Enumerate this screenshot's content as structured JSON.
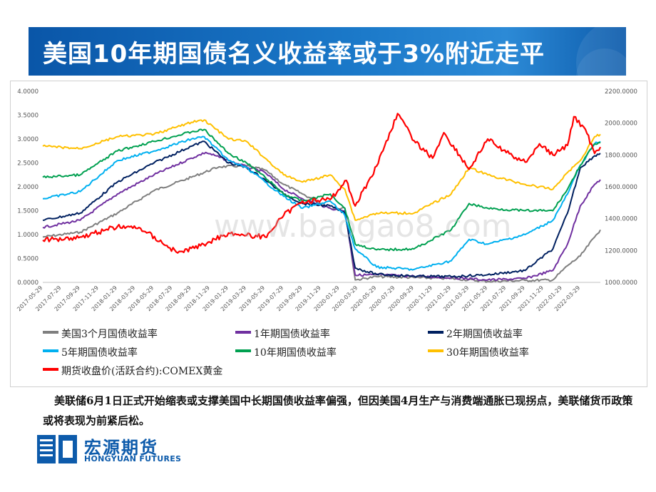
{
  "title": "美国10年期国债名义收益率或于3%附近走平",
  "note": "美联储6月1日正式开始缩表或支撑美国中长期国债收益率偏强，但因美国4月生产与消费端通胀已现拐点，美联储货币政策或将表现为前紧后松。",
  "logo": {
    "cn": "宏源期货",
    "en": "HONGYUAN FUTURES",
    "color": "#0d5bab"
  },
  "watermark": "www.baogao8.com",
  "chart_data": {
    "type": "line",
    "x_ticks": [
      "2017-05-29",
      "2017-07-29",
      "2017-09-29",
      "2017-11-29",
      "2018-01-29",
      "2018-03-29",
      "2018-05-29",
      "2018-07-29",
      "2018-09-29",
      "2018-11-29",
      "2019-01-29",
      "2019-03-29",
      "2019-05-29",
      "2019-07-29",
      "2019-09-29",
      "2019-11-29",
      "2020-01-29",
      "2020-03-29",
      "2020-05-29",
      "2020-07-29",
      "2020-09-29",
      "2020-11-29",
      "2021-01-29",
      "2021-03-29",
      "2021-05-29",
      "2021-07-29",
      "2021-09-29",
      "2021-11-29",
      "2022-01-29",
      "2022-03-29"
    ],
    "x_range": [
      "2017-05-29",
      "2022-06-03"
    ],
    "y_left": {
      "range": [
        0,
        4
      ],
      "ticks": [
        "0.0000",
        "0.5000",
        "1.0000",
        "1.5000",
        "2.0000",
        "2.5000",
        "3.0000",
        "3.5000",
        "4.0000"
      ]
    },
    "y_right": {
      "range": [
        1000,
        2200
      ],
      "ticks": [
        "1000.0000",
        "1200.0000",
        "1400.0000",
        "1600.0000",
        "1800.0000",
        "2000.0000",
        "2200.0000"
      ]
    },
    "grid": false,
    "legend_position": "bottom",
    "series": [
      {
        "name": "美国3个月国债收益率",
        "color": "#7f7f7f",
        "axis": "left",
        "x": [
          "2017-05-29",
          "2017-09-29",
          "2018-01-29",
          "2018-05-29",
          "2018-09-29",
          "2018-12-29",
          "2019-03-29",
          "2019-05-29",
          "2019-07-29",
          "2019-09-29",
          "2019-12-29",
          "2020-02-15",
          "2020-03-20",
          "2020-05-29",
          "2020-09-29",
          "2021-01-29",
          "2021-05-29",
          "2021-09-29",
          "2021-12-29",
          "2022-02-15",
          "2022-03-29",
          "2022-05-15",
          "2022-06-03"
        ],
        "values": [
          0.95,
          1.05,
          1.45,
          1.92,
          2.2,
          2.42,
          2.44,
          2.35,
          2.05,
          1.85,
          1.55,
          1.55,
          0.05,
          0.12,
          0.1,
          0.08,
          0.02,
          0.04,
          0.05,
          0.35,
          0.55,
          0.95,
          1.1
        ]
      },
      {
        "name": "1年期国债收益率",
        "color": "#7030a0",
        "axis": "left",
        "x": [
          "2017-05-29",
          "2017-09-29",
          "2018-01-29",
          "2018-05-29",
          "2018-09-29",
          "2018-11-15",
          "2019-01-29",
          "2019-03-29",
          "2019-05-29",
          "2019-07-29",
          "2019-09-29",
          "2019-12-29",
          "2020-02-15",
          "2020-03-20",
          "2020-05-29",
          "2020-09-29",
          "2021-01-29",
          "2021-05-29",
          "2021-09-29",
          "2021-12-29",
          "2022-02-15",
          "2022-03-29",
          "2022-05-15",
          "2022-06-03"
        ],
        "values": [
          1.15,
          1.3,
          1.85,
          2.25,
          2.6,
          2.72,
          2.55,
          2.42,
          2.3,
          1.95,
          1.75,
          1.55,
          1.5,
          0.15,
          0.16,
          0.13,
          0.1,
          0.05,
          0.08,
          0.25,
          0.8,
          1.6,
          2.05,
          2.15
        ]
      },
      {
        "name": "2年期国债收益率",
        "color": "#002060",
        "axis": "left",
        "x": [
          "2017-05-29",
          "2017-09-29",
          "2018-01-29",
          "2018-05-29",
          "2018-09-29",
          "2018-11-10",
          "2019-01-29",
          "2019-03-29",
          "2019-05-29",
          "2019-07-29",
          "2019-09-29",
          "2019-12-29",
          "2020-02-15",
          "2020-03-20",
          "2020-05-29",
          "2020-09-29",
          "2021-01-29",
          "2021-05-29",
          "2021-09-29",
          "2021-12-29",
          "2022-02-15",
          "2022-03-29",
          "2022-05-15",
          "2022-06-03"
        ],
        "values": [
          1.3,
          1.45,
          2.1,
          2.5,
          2.85,
          2.95,
          2.5,
          2.4,
          2.15,
          1.85,
          1.65,
          1.6,
          1.45,
          0.3,
          0.17,
          0.13,
          0.12,
          0.16,
          0.25,
          0.7,
          1.45,
          2.4,
          2.65,
          2.7
        ]
      },
      {
        "name": "5年期国债收益率",
        "color": "#00b0f0",
        "axis": "left",
        "x": [
          "2017-05-29",
          "2017-09-29",
          "2018-01-29",
          "2018-05-29",
          "2018-09-29",
          "2018-11-10",
          "2019-01-29",
          "2019-03-29",
          "2019-05-29",
          "2019-07-29",
          "2019-09-29",
          "2019-12-29",
          "2020-02-15",
          "2020-03-20",
          "2020-05-29",
          "2020-09-29",
          "2021-01-29",
          "2021-03-29",
          "2021-05-29",
          "2021-09-29",
          "2021-12-29",
          "2022-02-15",
          "2022-03-29",
          "2022-05-15",
          "2022-06-03"
        ],
        "values": [
          1.75,
          1.9,
          2.55,
          2.75,
          3.0,
          3.05,
          2.55,
          2.4,
          2.1,
          1.8,
          1.55,
          1.7,
          1.4,
          0.7,
          0.32,
          0.27,
          0.45,
          0.9,
          0.8,
          1.0,
          1.3,
          1.85,
          2.45,
          2.9,
          2.95
        ]
      },
      {
        "name": "10年期国债收益率",
        "color": "#00a050",
        "axis": "left",
        "x": [
          "2017-05-29",
          "2017-09-29",
          "2018-01-29",
          "2018-05-29",
          "2018-09-29",
          "2018-11-10",
          "2019-01-29",
          "2019-03-29",
          "2019-05-29",
          "2019-07-29",
          "2019-09-29",
          "2019-12-29",
          "2020-02-15",
          "2020-03-20",
          "2020-05-29",
          "2020-09-29",
          "2021-01-29",
          "2021-03-29",
          "2021-05-29",
          "2021-09-29",
          "2021-12-29",
          "2022-02-15",
          "2022-03-29",
          "2022-05-15",
          "2022-06-03"
        ],
        "values": [
          2.2,
          2.25,
          2.75,
          2.95,
          3.15,
          3.2,
          2.7,
          2.5,
          2.2,
          1.85,
          1.7,
          1.85,
          1.55,
          0.8,
          0.68,
          0.7,
          1.1,
          1.65,
          1.55,
          1.5,
          1.5,
          1.95,
          2.45,
          2.9,
          2.92
        ]
      },
      {
        "name": "30年期国债收益率",
        "color": "#ffc000",
        "axis": "left",
        "x": [
          "2017-05-29",
          "2017-09-29",
          "2018-01-29",
          "2018-05-29",
          "2018-09-29",
          "2018-11-10",
          "2019-01-29",
          "2019-03-29",
          "2019-05-29",
          "2019-07-29",
          "2019-09-29",
          "2019-12-29",
          "2020-02-15",
          "2020-03-20",
          "2020-05-29",
          "2020-09-29",
          "2021-01-29",
          "2021-03-29",
          "2021-05-29",
          "2021-09-29",
          "2021-12-29",
          "2022-02-15",
          "2022-03-29",
          "2022-05-15",
          "2022-06-03"
        ],
        "values": [
          2.85,
          2.8,
          3.05,
          3.1,
          3.35,
          3.4,
          3.0,
          2.95,
          2.6,
          2.25,
          2.1,
          2.25,
          1.95,
          1.3,
          1.45,
          1.45,
          1.85,
          2.4,
          2.25,
          2.05,
          1.95,
          2.3,
          2.55,
          3.05,
          3.1
        ]
      },
      {
        "name": "期货收盘价(活跃合约):COMEX黄金",
        "color": "#ff0000",
        "axis": "right",
        "x": [
          "2017-05-29",
          "2017-09-29",
          "2018-01-29",
          "2018-04-15",
          "2018-08-15",
          "2018-10-29",
          "2019-01-29",
          "2019-03-29",
          "2019-05-29",
          "2019-07-29",
          "2019-09-29",
          "2019-12-29",
          "2020-02-20",
          "2020-03-20",
          "2020-05-29",
          "2020-08-06",
          "2020-09-29",
          "2020-11-29",
          "2021-01-05",
          "2021-03-29",
          "2021-05-29",
          "2021-07-29",
          "2021-09-29",
          "2021-11-15",
          "2021-12-29",
          "2022-02-15",
          "2022-03-08",
          "2022-04-15",
          "2022-05-15",
          "2022-06-03"
        ],
        "values": [
          1265,
          1285,
          1350,
          1340,
          1185,
          1230,
          1310,
          1295,
          1285,
          1420,
          1510,
          1520,
          1640,
          1480,
          1730,
          2060,
          1890,
          1780,
          1940,
          1710,
          1900,
          1815,
          1755,
          1870,
          1800,
          1860,
          2040,
          1960,
          1810,
          1850
        ]
      }
    ]
  }
}
